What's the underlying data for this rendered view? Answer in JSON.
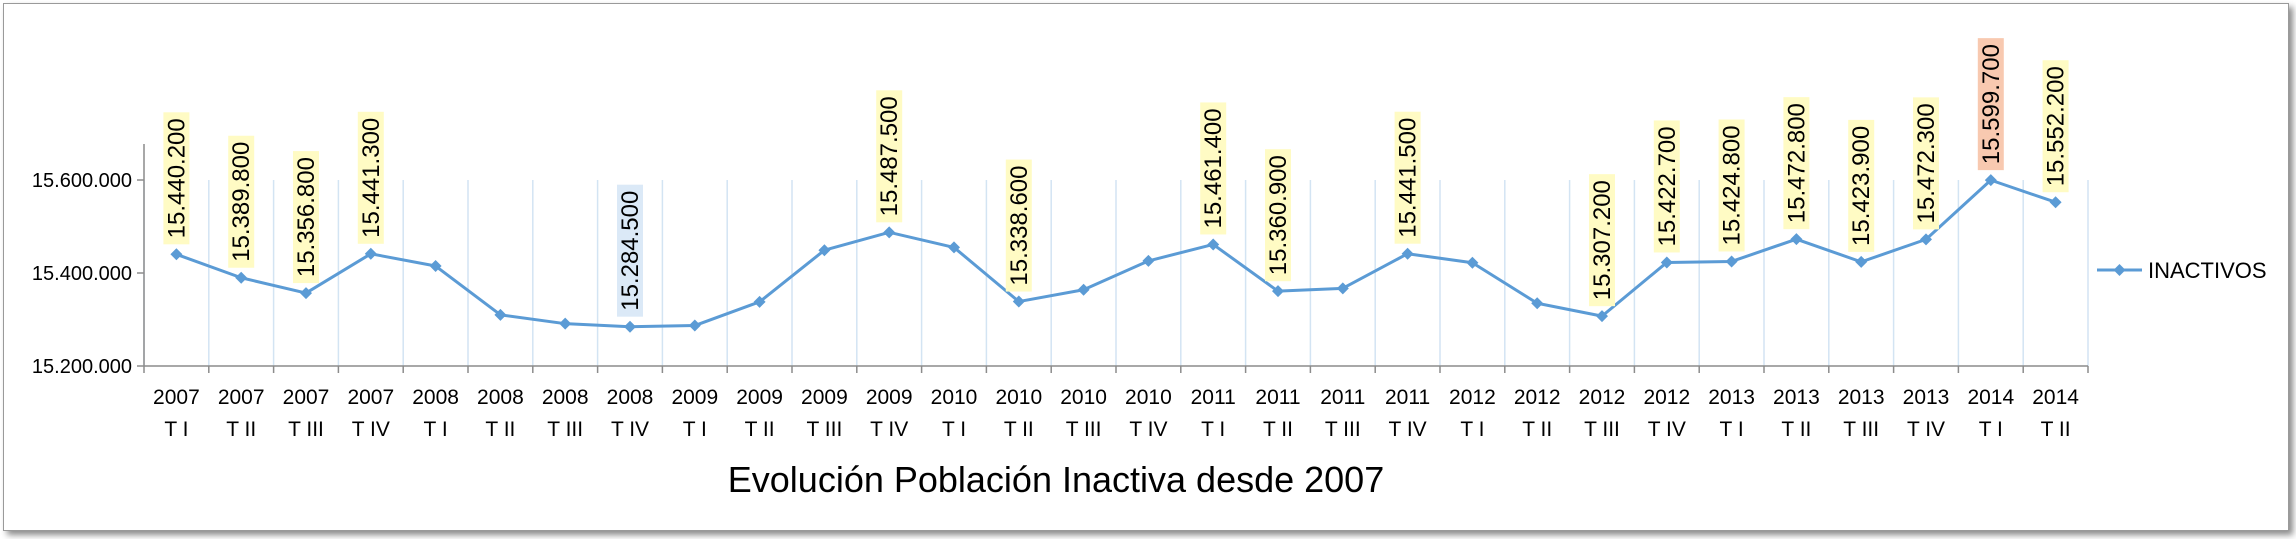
{
  "chart_data": {
    "type": "line",
    "title": "Evolución Población Inactiva desde 2007",
    "xlabel": "",
    "ylabel": "",
    "ylim": [
      15200000,
      15800000
    ],
    "yticks": [
      {
        "value": 15200000,
        "label": "15.200.000"
      },
      {
        "value": 15400000,
        "label": "15.400.000"
      },
      {
        "value": 15600000,
        "label": "15.600.000"
      }
    ],
    "grid": "vertical",
    "legend": "right",
    "categories": [
      {
        "year": "2007",
        "quarter": "T I"
      },
      {
        "year": "2007",
        "quarter": "T II"
      },
      {
        "year": "2007",
        "quarter": "T III"
      },
      {
        "year": "2007",
        "quarter": "T IV"
      },
      {
        "year": "2008",
        "quarter": "T I"
      },
      {
        "year": "2008",
        "quarter": "T II"
      },
      {
        "year": "2008",
        "quarter": "T III"
      },
      {
        "year": "2008",
        "quarter": "T IV"
      },
      {
        "year": "2009",
        "quarter": "T I"
      },
      {
        "year": "2009",
        "quarter": "T II"
      },
      {
        "year": "2009",
        "quarter": "T III"
      },
      {
        "year": "2009",
        "quarter": "T IV"
      },
      {
        "year": "2010",
        "quarter": "T I"
      },
      {
        "year": "2010",
        "quarter": "T II"
      },
      {
        "year": "2010",
        "quarter": "T III"
      },
      {
        "year": "2010",
        "quarter": "T IV"
      },
      {
        "year": "2011",
        "quarter": "T I"
      },
      {
        "year": "2011",
        "quarter": "T II"
      },
      {
        "year": "2011",
        "quarter": "T III"
      },
      {
        "year": "2011",
        "quarter": "T IV"
      },
      {
        "year": "2012",
        "quarter": "T I"
      },
      {
        "year": "2012",
        "quarter": "T II"
      },
      {
        "year": "2012",
        "quarter": "T III"
      },
      {
        "year": "2012",
        "quarter": "T IV"
      },
      {
        "year": "2013",
        "quarter": "T I"
      },
      {
        "year": "2013",
        "quarter": "T II"
      },
      {
        "year": "2013",
        "quarter": "T III"
      },
      {
        "year": "2013",
        "quarter": "T IV"
      },
      {
        "year": "2014",
        "quarter": "T I"
      },
      {
        "year": "2014",
        "quarter": "T II"
      }
    ],
    "series": [
      {
        "name": "INACTIVOS",
        "color": "#5b9bd5",
        "values": [
          15440200,
          15389800,
          15356800,
          15441300,
          15415000,
          15310000,
          15291000,
          15284500,
          15287000,
          15338000,
          15449000,
          15487500,
          15455000,
          15338600,
          15364000,
          15426000,
          15461400,
          15360900,
          15367000,
          15441500,
          15422000,
          15335000,
          15307200,
          15422700,
          15424800,
          15472800,
          15423900,
          15472300,
          15599700,
          15552200
        ]
      }
    ],
    "data_labels": [
      {
        "index": 0,
        "text": "15.440.200",
        "bg": "#fffbc4",
        "color": "#000000"
      },
      {
        "index": 1,
        "text": "15.389.800",
        "bg": "#fffbc4",
        "color": "#000000"
      },
      {
        "index": 2,
        "text": "15.356.800",
        "bg": "#fffbc4",
        "color": "#000000"
      },
      {
        "index": 3,
        "text": "15.441.300",
        "bg": "#fffbc4",
        "color": "#000000"
      },
      {
        "index": 7,
        "text": "15.284.500",
        "bg": "#dbe9f7",
        "color": "#17375e"
      },
      {
        "index": 11,
        "text": "15.487.500",
        "bg": "#fffbc4",
        "color": "#000000"
      },
      {
        "index": 13,
        "text": "15.338.600",
        "bg": "#fffbc4",
        "color": "#000000"
      },
      {
        "index": 16,
        "text": "15.461.400",
        "bg": "#fffbc4",
        "color": "#000000"
      },
      {
        "index": 17,
        "text": "15.360.900",
        "bg": "#fffbc4",
        "color": "#000000"
      },
      {
        "index": 19,
        "text": "15.441.500",
        "bg": "#fffbc4",
        "color": "#000000"
      },
      {
        "index": 22,
        "text": "15.307.200",
        "bg": "#fffbc4",
        "color": "#000000"
      },
      {
        "index": 23,
        "text": "15.422.700",
        "bg": "#fffbc4",
        "color": "#000000"
      },
      {
        "index": 24,
        "text": "15.424.800",
        "bg": "#fffbc4",
        "color": "#000000"
      },
      {
        "index": 25,
        "text": "15.472.800",
        "bg": "#fffbc4",
        "color": "#000000"
      },
      {
        "index": 26,
        "text": "15.423.900",
        "bg": "#fffbc4",
        "color": "#000000"
      },
      {
        "index": 27,
        "text": "15.472.300",
        "bg": "#fffbc4",
        "color": "#000000"
      },
      {
        "index": 28,
        "text": "15.599.700",
        "bg": "#f8c9b0",
        "color": "#c00000"
      },
      {
        "index": 29,
        "text": "15.552.200",
        "bg": "#fffbc4",
        "color": "#000000"
      }
    ]
  }
}
